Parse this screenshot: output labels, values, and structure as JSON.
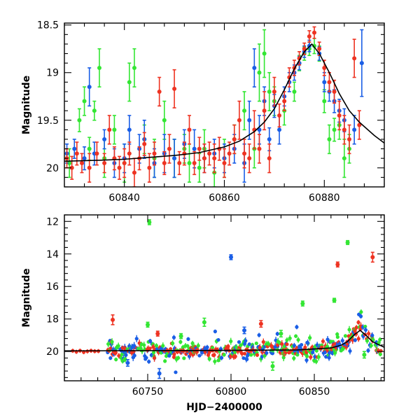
{
  "chart_data": [
    {
      "type": "scatter",
      "panel": "top",
      "xlabel": "",
      "ylabel": "Magnitude",
      "xlim": [
        60828,
        60892
      ],
      "ylim": [
        20.2,
        18.48
      ],
      "y_inverted": true,
      "xticks": [
        60840,
        60860,
        60880
      ],
      "yticks": [
        18.5,
        19,
        19.5,
        20
      ],
      "ytick_labels": [
        "18.5",
        "19",
        "19.5",
        "20"
      ],
      "xtick_labels": [
        "60840",
        "60860",
        "60880"
      ],
      "colors": {
        "green": "#33e633",
        "blue": "#1a5ee6",
        "red": "#ee3322",
        "model": "#000000"
      },
      "model_curve": {
        "description": "baseline near 19.95 rising to a peak near 18.7 at HJD 60877.5",
        "x": [
          60828,
          60835,
          60840,
          60845,
          60850,
          60855,
          60860,
          60863,
          60866,
          60868,
          60870,
          60872,
          60874,
          60876,
          60877.5,
          60879,
          60881,
          60883,
          60885,
          60887,
          60890,
          60892
        ],
        "y": [
          19.93,
          19.92,
          19.91,
          19.89,
          19.87,
          19.84,
          19.78,
          19.72,
          19.62,
          19.52,
          19.38,
          19.18,
          18.96,
          18.78,
          18.7,
          18.8,
          19.0,
          19.22,
          19.4,
          19.52,
          19.66,
          19.74
        ]
      },
      "series": [
        {
          "color": "green",
          "points": [
            [
              60829,
              19.95,
              0.15
            ],
            [
              60831,
              19.5,
              0.12
            ],
            [
              60832,
              19.3,
              0.15
            ],
            [
              60833,
              19.8,
              0.12
            ],
            [
              60834,
              19.4,
              0.1
            ],
            [
              60835,
              18.95,
              0.2
            ],
            [
              60836,
              19.9,
              0.2
            ],
            [
              60838,
              19.6,
              0.15
            ],
            [
              60840,
              19.95,
              0.2
            ],
            [
              60841,
              19.1,
              0.2
            ],
            [
              60842,
              18.95,
              0.2
            ],
            [
              60844,
              19.7,
              0.15
            ],
            [
              60846,
              19.9,
              0.2
            ],
            [
              60848,
              19.5,
              0.2
            ],
            [
              60850,
              19.9,
              0.2
            ],
            [
              60852,
              19.8,
              0.15
            ],
            [
              60853,
              19.95,
              0.2
            ],
            [
              60855,
              20.0,
              0.15
            ],
            [
              60856,
              19.8,
              0.2
            ],
            [
              60858,
              20.05,
              0.15
            ],
            [
              60860,
              19.9,
              0.2
            ],
            [
              60862,
              19.7,
              0.15
            ],
            [
              60864,
              19.4,
              0.2
            ],
            [
              60866,
              19.8,
              0.2
            ],
            [
              60867,
              19.0,
              0.3
            ],
            [
              60868,
              18.8,
              0.25
            ],
            [
              60869,
              19.2,
              0.2
            ],
            [
              60870,
              19.3,
              0.15
            ],
            [
              60872,
              19.4,
              0.15
            ],
            [
              60874,
              19.2,
              0.1
            ],
            [
              60875,
              18.9,
              0.08
            ],
            [
              60876,
              18.8,
              0.07
            ],
            [
              60877,
              18.75,
              0.07
            ],
            [
              60878,
              18.72,
              0.08
            ],
            [
              60879,
              18.8,
              0.08
            ],
            [
              60880,
              19.3,
              0.12
            ],
            [
              60881,
              19.7,
              0.15
            ],
            [
              60882,
              19.6,
              0.12
            ],
            [
              60883,
              19.55,
              0.15
            ],
            [
              60884,
              19.9,
              0.2
            ],
            [
              60885,
              19.8,
              0.15
            ]
          ]
        },
        {
          "color": "blue",
          "points": [
            [
              60828.5,
              19.85,
              0.1
            ],
            [
              60830,
              19.8,
              0.1
            ],
            [
              60832,
              19.9,
              0.12
            ],
            [
              60833,
              19.15,
              0.2
            ],
            [
              60834,
              19.85,
              0.12
            ],
            [
              60836,
              19.7,
              0.1
            ],
            [
              60838,
              19.95,
              0.15
            ],
            [
              60840,
              19.9,
              0.15
            ],
            [
              60841,
              19.6,
              0.15
            ],
            [
              60843,
              19.8,
              0.15
            ],
            [
              60844,
              19.7,
              0.2
            ],
            [
              60846,
              19.95,
              0.15
            ],
            [
              60848,
              19.85,
              0.2
            ],
            [
              60850,
              19.9,
              0.2
            ],
            [
              60852,
              19.75,
              0.15
            ],
            [
              60854,
              19.8,
              0.2
            ],
            [
              60856,
              19.9,
              0.15
            ],
            [
              60858,
              19.85,
              0.15
            ],
            [
              60860,
              19.9,
              0.15
            ],
            [
              60862,
              19.8,
              0.15
            ],
            [
              60864,
              19.95,
              0.2
            ],
            [
              60865,
              19.5,
              0.2
            ],
            [
              60866,
              18.95,
              0.2
            ],
            [
              60867,
              19.6,
              0.15
            ],
            [
              60868,
              19.3,
              0.15
            ],
            [
              60869,
              19.7,
              0.12
            ],
            [
              60870,
              19.35,
              0.12
            ],
            [
              60871,
              19.6,
              0.15
            ],
            [
              60872,
              19.25,
              0.1
            ],
            [
              60873,
              19.1,
              0.1
            ],
            [
              60874,
              19.0,
              0.08
            ],
            [
              60875,
              18.9,
              0.07
            ],
            [
              60876,
              18.78,
              0.06
            ],
            [
              60877,
              18.72,
              0.06
            ],
            [
              60879,
              18.8,
              0.07
            ],
            [
              60880,
              19.1,
              0.1
            ],
            [
              60881,
              19.2,
              0.1
            ],
            [
              60882,
              19.3,
              0.12
            ],
            [
              60883,
              19.4,
              0.12
            ],
            [
              60884,
              19.5,
              0.12
            ],
            [
              60886,
              19.6,
              0.15
            ],
            [
              60887.5,
              18.9,
              0.35
            ]
          ]
        },
        {
          "color": "red",
          "points": [
            [
              60828.5,
              19.9,
              0.1
            ],
            [
              60829.5,
              20.0,
              0.12
            ],
            [
              60830.5,
              19.85,
              0.12
            ],
            [
              60831.5,
              19.95,
              0.1
            ],
            [
              60833,
              20.0,
              0.15
            ],
            [
              60834.5,
              19.85,
              0.12
            ],
            [
              60836,
              19.95,
              0.1
            ],
            [
              60837,
              19.6,
              0.15
            ],
            [
              60838,
              19.9,
              0.12
            ],
            [
              60839,
              20.0,
              0.12
            ],
            [
              60840,
              19.95,
              0.15
            ],
            [
              60841,
              19.85,
              0.12
            ],
            [
              60842,
              20.05,
              0.15
            ],
            [
              60843,
              19.9,
              0.12
            ],
            [
              60844,
              19.75,
              0.12
            ],
            [
              60845,
              20.0,
              0.15
            ],
            [
              60846,
              19.85,
              0.12
            ],
            [
              60847,
              19.2,
              0.15
            ],
            [
              60848,
              19.95,
              0.12
            ],
            [
              60849,
              19.8,
              0.15
            ],
            [
              60850,
              19.17,
              0.2
            ],
            [
              60851,
              19.95,
              0.12
            ],
            [
              60852,
              19.85,
              0.12
            ],
            [
              60853,
              19.6,
              0.15
            ],
            [
              60854,
              19.95,
              0.12
            ],
            [
              60855,
              19.8,
              0.12
            ],
            [
              60856,
              19.9,
              0.15
            ],
            [
              60857,
              19.85,
              0.12
            ],
            [
              60858,
              19.9,
              0.15
            ],
            [
              60859,
              19.8,
              0.12
            ],
            [
              60860,
              19.95,
              0.15
            ],
            [
              60861,
              19.85,
              0.12
            ],
            [
              60862,
              19.7,
              0.15
            ],
            [
              60863,
              19.5,
              0.2
            ],
            [
              60864,
              19.85,
              0.15
            ],
            [
              60865,
              19.9,
              0.15
            ],
            [
              60866,
              19.6,
              0.2
            ],
            [
              60867,
              19.8,
              0.15
            ],
            [
              60868,
              19.4,
              0.2
            ],
            [
              60869,
              19.9,
              0.15
            ],
            [
              60870,
              19.2,
              0.15
            ],
            [
              60871,
              19.45,
              0.12
            ],
            [
              60872,
              19.3,
              0.1
            ],
            [
              60873,
              19.05,
              0.1
            ],
            [
              60874,
              18.95,
              0.08
            ],
            [
              60875,
              18.85,
              0.07
            ],
            [
              60876,
              18.75,
              0.06
            ],
            [
              60877,
              18.62,
              0.06
            ],
            [
              60878,
              18.58,
              0.06
            ],
            [
              60879,
              18.75,
              0.07
            ],
            [
              60880,
              18.95,
              0.08
            ],
            [
              60881,
              19.1,
              0.1
            ],
            [
              60882,
              19.2,
              0.12
            ],
            [
              60883,
              19.45,
              0.15
            ],
            [
              60884,
              19.6,
              0.15
            ],
            [
              60885,
              19.7,
              0.15
            ],
            [
              60886,
              18.85,
              0.2
            ],
            [
              60887,
              19.55,
              0.15
            ]
          ]
        }
      ]
    },
    {
      "type": "scatter",
      "panel": "bottom",
      "xlabel": "HJD−2400000",
      "ylabel": "Magnitude",
      "xlim": [
        60700,
        60892
      ],
      "ylim": [
        21.8,
        11.6
      ],
      "y_inverted": true,
      "xticks": [
        60750,
        60800,
        60850
      ],
      "yticks": [
        12,
        14,
        16,
        18,
        20
      ],
      "ytick_labels": [
        "12",
        "14",
        "16",
        "18",
        "20"
      ],
      "xtick_labels": [
        "60750",
        "60800",
        "60850"
      ],
      "colors": {
        "green": "#33e633",
        "blue": "#1a5ee6",
        "red": "#ee3322",
        "model": "#000000"
      },
      "model_curve": {
        "x": [
          60700,
          60780,
          60840,
          60860,
          60866,
          60870,
          60874,
          60877.5,
          60881,
          60885,
          60892
        ],
        "y": [
          19.96,
          19.94,
          19.9,
          19.78,
          19.62,
          19.38,
          18.96,
          18.7,
          19.0,
          19.4,
          19.74
        ]
      },
      "outliers": [
        {
          "color": "green",
          "x": 60751,
          "y": 12.05,
          "err": 0.15
        },
        {
          "color": "blue",
          "x": 60800,
          "y": 14.2,
          "err": 0.15
        },
        {
          "color": "green",
          "x": 60870,
          "y": 13.3,
          "err": 0.12
        },
        {
          "color": "red",
          "x": 60864,
          "y": 14.65,
          "err": 0.15
        },
        {
          "color": "red",
          "x": 60885,
          "y": 14.2,
          "err": 0.3
        },
        {
          "color": "green",
          "x": 60843,
          "y": 17.05,
          "err": 0.15
        },
        {
          "color": "green",
          "x": 60862,
          "y": 16.85,
          "err": 0.12
        },
        {
          "color": "red",
          "x": 60729,
          "y": 18.05,
          "err": 0.3
        },
        {
          "color": "green",
          "x": 60750,
          "y": 18.35,
          "err": 0.15
        },
        {
          "color": "green",
          "x": 60784,
          "y": 18.2,
          "err": 0.25
        },
        {
          "color": "red",
          "x": 60818,
          "y": 18.3,
          "err": 0.2
        },
        {
          "color": "blue",
          "x": 60808,
          "y": 18.7,
          "err": 0.2
        },
        {
          "color": "red",
          "x": 60756,
          "y": 18.9,
          "err": 0.15
        },
        {
          "color": "green",
          "x": 60770,
          "y": 19.05,
          "err": 0.15
        },
        {
          "color": "green",
          "x": 60830,
          "y": 18.9,
          "err": 0.2
        },
        {
          "color": "blue",
          "x": 60757,
          "y": 21.35,
          "err": 0.3
        },
        {
          "color": "blue",
          "x": 60738,
          "y": 20.7,
          "err": 0.2
        },
        {
          "color": "green",
          "x": 60825,
          "y": 20.9,
          "err": 0.25
        },
        {
          "color": "green",
          "x": 60880,
          "y": 20.2,
          "err": 0.2
        }
      ],
      "dense_band": {
        "description": "three interleaved series clustered around magnitude 19.9 across HJD 60705-60890, following the model curve near the end",
        "x_start": 60705,
        "x_end": 60890,
        "center": 19.9,
        "scatter": 0.35
      }
    }
  ]
}
